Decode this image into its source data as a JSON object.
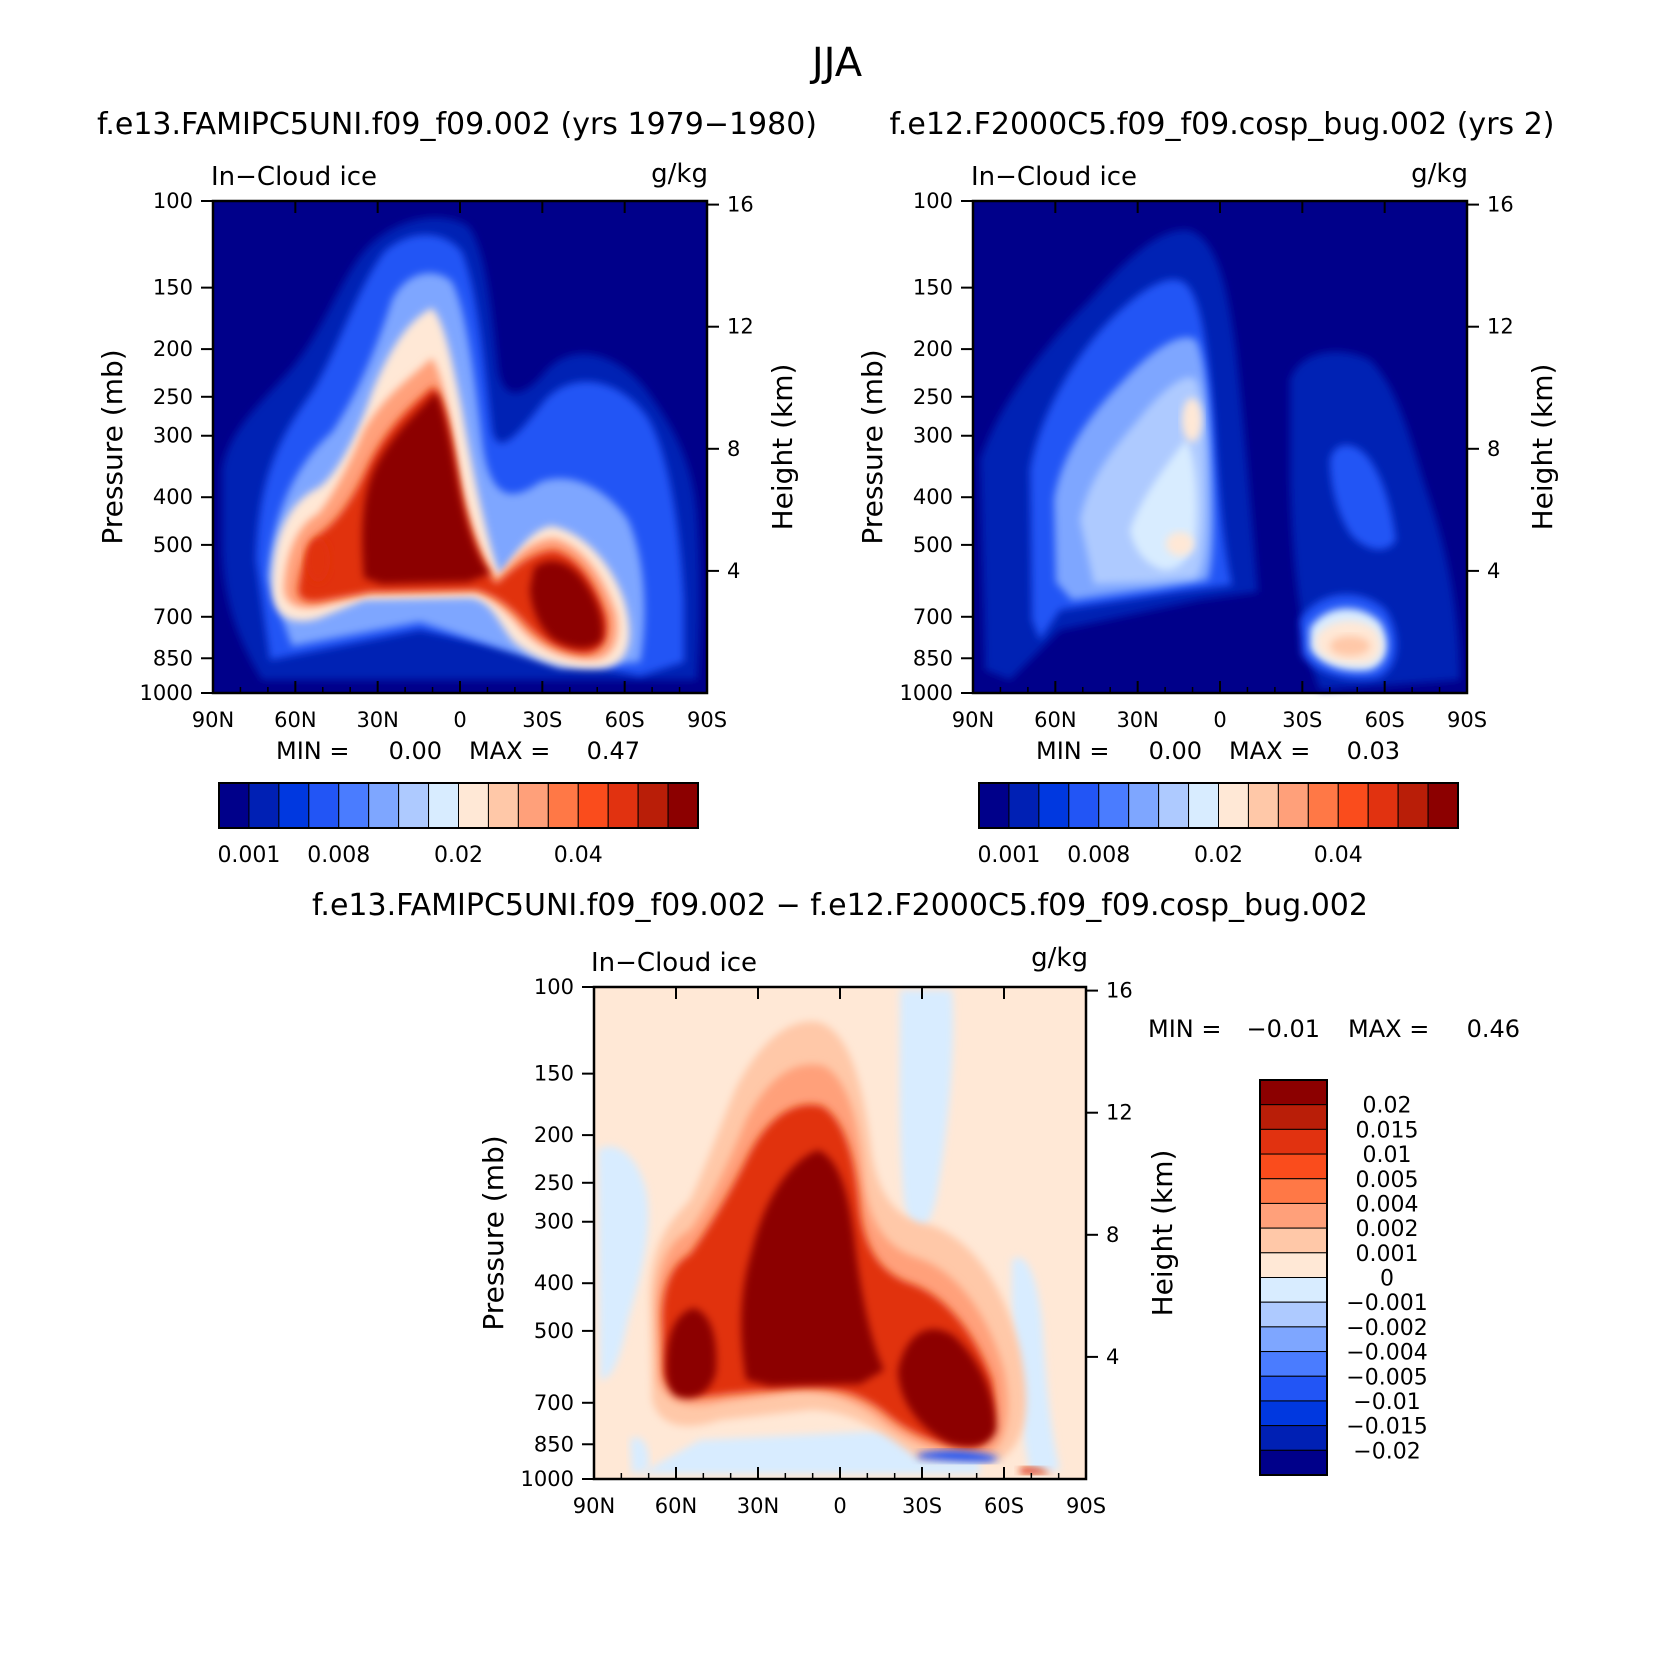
{
  "season": "JJA",
  "chart_data": [
    {
      "type": "heatmap",
      "panel": "left",
      "title": "f.e13.FAMIPC5UNI.f09_f09.002 (yrs 1979−1980)",
      "variable": "In−Cloud ice",
      "units": "g/kg",
      "xlabel": "",
      "ylabel": "Pressure (mb)",
      "ylabel_right": "Height (km)",
      "x_ticks": [
        "90N",
        "60N",
        "30N",
        "0",
        "30S",
        "60S",
        "90S"
      ],
      "y_ticks": [
        "100",
        "150",
        "200",
        "250",
        "300",
        "400",
        "500",
        "700",
        "850",
        "1000"
      ],
      "y2_ticks": [
        "16",
        "12",
        "8",
        "4"
      ],
      "ylim": [
        1000,
        100
      ],
      "min_label": "MIN =",
      "min_value": "0.00",
      "max_label": "MAX =",
      "max_value": "0.47",
      "colorbar_labels": [
        "0.001",
        "0.008",
        "0.02",
        "0.04"
      ],
      "features": [
        {
          "desc": "tropical maximum",
          "lat_from": 25,
          "lat_to": -10,
          "p_top": 250,
          "p_bottom": 600,
          "value": 0.47
        },
        {
          "desc": "southern mid-latitude maximum",
          "lat_from": -25,
          "lat_to": -62,
          "p_top": 450,
          "p_bottom": 900,
          "value": 0.3
        },
        {
          "desc": "northern mid-latitude maximum",
          "lat_from": 68,
          "lat_to": 50,
          "p_top": 470,
          "p_bottom": 680,
          "value": 0.045
        }
      ]
    },
    {
      "type": "heatmap",
      "panel": "right",
      "title": "f.e12.F2000C5.f09_f09.cosp_bug.002 (yrs 2)",
      "variable": "In−Cloud ice",
      "units": "g/kg",
      "xlabel": "",
      "ylabel": "Pressure (mb)",
      "ylabel_right": "Height (km)",
      "x_ticks": [
        "90N",
        "60N",
        "30N",
        "0",
        "30S",
        "60S",
        "90S"
      ],
      "y_ticks": [
        "100",
        "150",
        "200",
        "250",
        "300",
        "400",
        "500",
        "700",
        "850",
        "1000"
      ],
      "y2_ticks": [
        "16",
        "12",
        "8",
        "4"
      ],
      "ylim": [
        1000,
        100
      ],
      "min_label": "MIN =",
      "min_value": "0.00",
      "max_label": "MAX =",
      "max_value": "0.03",
      "colorbar_labels": [
        "0.001",
        "0.008",
        "0.02",
        "0.04"
      ],
      "features": [
        {
          "desc": "tropical maximum",
          "lat_from": 15,
          "lat_to": 0,
          "p_top": 300,
          "p_bottom": 560,
          "value": 0.02
        },
        {
          "desc": "southern low-level maximum",
          "lat_from": -32,
          "lat_to": -60,
          "p_top": 720,
          "p_bottom": 900,
          "value": 0.03
        }
      ]
    },
    {
      "type": "heatmap",
      "panel": "difference",
      "title": "f.e13.FAMIPC5UNI.f09_f09.002 − f.e12.F2000C5.f09_f09.cosp_bug.002",
      "variable": "In−Cloud ice",
      "units": "g/kg",
      "xlabel": "",
      "ylabel": "Pressure (mb)",
      "ylabel_right": "Height (km)",
      "x_ticks": [
        "90N",
        "60N",
        "30N",
        "0",
        "30S",
        "60S",
        "90S"
      ],
      "y_ticks": [
        "100",
        "150",
        "200",
        "250",
        "300",
        "400",
        "500",
        "700",
        "850",
        "1000"
      ],
      "y2_ticks": [
        "16",
        "12",
        "8",
        "4"
      ],
      "ylim": [
        1000,
        100
      ],
      "min_label": "MIN =",
      "min_value": "−0.01",
      "max_label": "MAX =",
      "max_value": "0.46",
      "colorbar_labels": [
        "0.02",
        "0.015",
        "0.01",
        "0.005",
        "0.004",
        "0.002",
        "0.001",
        "0",
        "−0.001",
        "−0.002",
        "−0.004",
        "−0.005",
        "−0.01",
        "−0.015",
        "−0.02"
      ],
      "features": [
        {
          "desc": "tropical positive difference",
          "lat_from": 25,
          "lat_to": -10,
          "p_top": 250,
          "p_bottom": 600,
          "value": 0.46
        },
        {
          "desc": "southern positive difference",
          "lat_from": -25,
          "lat_to": -62,
          "p_top": 450,
          "p_bottom": 900,
          "value": 0.3
        },
        {
          "desc": "northern positive difference",
          "lat_from": 68,
          "lat_to": 50,
          "p_top": 470,
          "p_bottom": 680,
          "value": 0.04
        }
      ]
    }
  ],
  "colors": {
    "seq": [
      "#00008a",
      "#0020b4",
      "#0038e0",
      "#2255f5",
      "#4a7cff",
      "#7ea6ff",
      "#aecaff",
      "#d8ecff",
      "#ffe8d6",
      "#ffc8a8",
      "#ffa07a",
      "#ff7846",
      "#fa4c1c",
      "#e13210",
      "#b91e08",
      "#8c0000"
    ],
    "diff": [
      "#8c0000",
      "#b91e08",
      "#e13210",
      "#fa4c1c",
      "#ff7846",
      "#ffa07a",
      "#ffc8a8",
      "#ffe8d6",
      "#d8ecff",
      "#aecaff",
      "#7ea6ff",
      "#4a7cff",
      "#2255f5",
      "#0038e0",
      "#0020b4",
      "#00008a"
    ]
  }
}
